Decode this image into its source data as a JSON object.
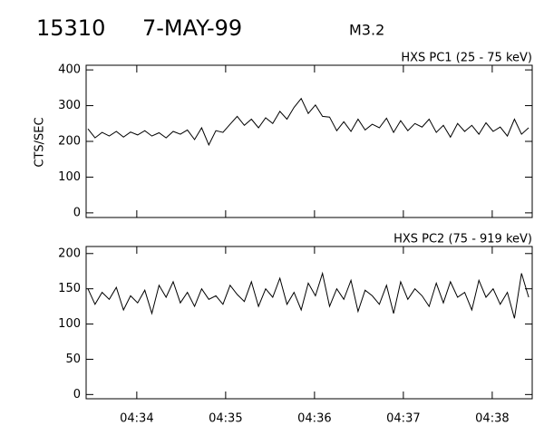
{
  "header": {
    "id": "15310",
    "date": "7-MAY-99",
    "class": "M3.2"
  },
  "chart_data": [
    {
      "type": "line",
      "subtitle": "HXS PC1 (25 - 75 keV)",
      "ylabel": "CTS/SEC",
      "color": "#000000",
      "xlim": [
        33.43,
        38.45
      ],
      "ylim": [
        -13,
        413
      ],
      "xticks": [
        34,
        35,
        36,
        37,
        38
      ],
      "yticks": [
        0,
        100,
        200,
        300,
        400
      ],
      "x": [
        33.45,
        33.53,
        33.61,
        33.69,
        33.77,
        33.85,
        33.93,
        34.01,
        34.09,
        34.17,
        34.25,
        34.33,
        34.41,
        34.49,
        34.57,
        34.65,
        34.73,
        34.81,
        34.89,
        34.97,
        35.05,
        35.13,
        35.21,
        35.29,
        35.37,
        35.45,
        35.53,
        35.61,
        35.69,
        35.77,
        35.85,
        35.93,
        36.01,
        36.09,
        36.17,
        36.25,
        36.33,
        36.41,
        36.49,
        36.57,
        36.65,
        36.73,
        36.81,
        36.89,
        36.97,
        37.05,
        37.13,
        37.21,
        37.29,
        37.37,
        37.45,
        37.53,
        37.61,
        37.69,
        37.77,
        37.85,
        37.93,
        38.01,
        38.09,
        38.17,
        38.25,
        38.33,
        38.41
      ],
      "values": [
        235,
        210,
        225,
        215,
        228,
        212,
        226,
        218,
        230,
        215,
        224,
        210,
        228,
        220,
        232,
        205,
        238,
        190,
        230,
        225,
        248,
        270,
        245,
        262,
        238,
        266,
        250,
        284,
        262,
        295,
        320,
        278,
        302,
        270,
        268,
        230,
        255,
        228,
        262,
        232,
        248,
        238,
        265,
        225,
        258,
        230,
        250,
        240,
        262,
        225,
        245,
        212,
        250,
        228,
        245,
        220,
        252,
        228,
        240,
        215,
        262,
        220,
        238
      ]
    },
    {
      "type": "line",
      "subtitle": "HXS PC2 (75 - 919 keV)",
      "color": "#000000",
      "xlim": [
        33.43,
        38.45
      ],
      "ylim": [
        -6,
        210
      ],
      "xticks": [
        {
          "value": 34,
          "label": "04:34"
        },
        {
          "value": 35,
          "label": "04:35"
        },
        {
          "value": 36,
          "label": "04:36"
        },
        {
          "value": 37,
          "label": "04:37"
        },
        {
          "value": 38,
          "label": "04:38"
        }
      ],
      "yticks": [
        0,
        50,
        100,
        150,
        200
      ],
      "x": [
        33.45,
        33.53,
        33.61,
        33.69,
        33.77,
        33.85,
        33.93,
        34.01,
        34.09,
        34.17,
        34.25,
        34.33,
        34.41,
        34.49,
        34.57,
        34.65,
        34.73,
        34.81,
        34.89,
        34.97,
        35.05,
        35.13,
        35.21,
        35.29,
        35.37,
        35.45,
        35.53,
        35.61,
        35.69,
        35.77,
        35.85,
        35.93,
        36.01,
        36.09,
        36.17,
        36.25,
        36.33,
        36.41,
        36.49,
        36.57,
        36.65,
        36.73,
        36.81,
        36.89,
        36.97,
        37.05,
        37.13,
        37.21,
        37.29,
        37.37,
        37.45,
        37.53,
        37.61,
        37.69,
        37.77,
        37.85,
        37.93,
        38.01,
        38.09,
        38.17,
        38.25,
        38.33,
        38.41
      ],
      "values": [
        150,
        128,
        145,
        135,
        152,
        120,
        140,
        130,
        148,
        115,
        155,
        138,
        160,
        130,
        145,
        125,
        150,
        135,
        140,
        128,
        155,
        142,
        132,
        160,
        125,
        150,
        138,
        165,
        128,
        145,
        120,
        158,
        140,
        172,
        125,
        150,
        135,
        162,
        118,
        148,
        140,
        128,
        155,
        115,
        160,
        135,
        150,
        140,
        125,
        158,
        130,
        160,
        138,
        145,
        120,
        162,
        138,
        150,
        128,
        145,
        108,
        172,
        138
      ]
    }
  ]
}
